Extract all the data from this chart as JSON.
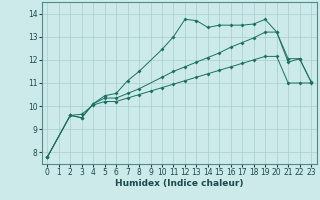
{
  "background_color": "#cceaea",
  "grid_color": "#aacccc",
  "line_color": "#1a7060",
  "xlabel": "Humidex (Indice chaleur)",
  "xlim": [
    -0.5,
    23.5
  ],
  "ylim": [
    7.5,
    14.5
  ],
  "yticks": [
    8,
    9,
    10,
    11,
    12,
    13,
    14
  ],
  "xticks": [
    0,
    1,
    2,
    3,
    4,
    5,
    6,
    7,
    8,
    9,
    10,
    11,
    12,
    13,
    14,
    15,
    16,
    17,
    18,
    19,
    20,
    21,
    22,
    23
  ],
  "line1_x": [
    0,
    2,
    3,
    4,
    5,
    6,
    7,
    8,
    10,
    11,
    12,
    13,
    14,
    15,
    16,
    17,
    18,
    19,
    20,
    21,
    22,
    23
  ],
  "line1_y": [
    7.8,
    9.6,
    9.5,
    10.1,
    10.45,
    10.55,
    11.1,
    11.5,
    12.45,
    13.0,
    13.75,
    13.7,
    13.4,
    13.5,
    13.5,
    13.5,
    13.55,
    13.75,
    13.2,
    11.9,
    12.05,
    11.05
  ],
  "line2_x": [
    0,
    2,
    3,
    4,
    5,
    6,
    7,
    8,
    10,
    11,
    12,
    13,
    14,
    15,
    16,
    17,
    18,
    19,
    20,
    21,
    22,
    23
  ],
  "line2_y": [
    7.8,
    9.6,
    9.5,
    10.1,
    10.35,
    10.35,
    10.55,
    10.75,
    11.25,
    11.5,
    11.7,
    11.9,
    12.1,
    12.3,
    12.55,
    12.75,
    12.95,
    13.2,
    13.2,
    12.05,
    12.05,
    11.05
  ],
  "line3_x": [
    0,
    2,
    3,
    4,
    5,
    6,
    7,
    8,
    9,
    10,
    11,
    12,
    13,
    14,
    15,
    16,
    17,
    18,
    19,
    20,
    21,
    22,
    23
  ],
  "line3_y": [
    7.8,
    9.6,
    9.65,
    10.05,
    10.2,
    10.2,
    10.35,
    10.5,
    10.65,
    10.8,
    10.95,
    11.1,
    11.25,
    11.4,
    11.55,
    11.7,
    11.85,
    12.0,
    12.15,
    12.15,
    11.0,
    11.0,
    11.0
  ]
}
